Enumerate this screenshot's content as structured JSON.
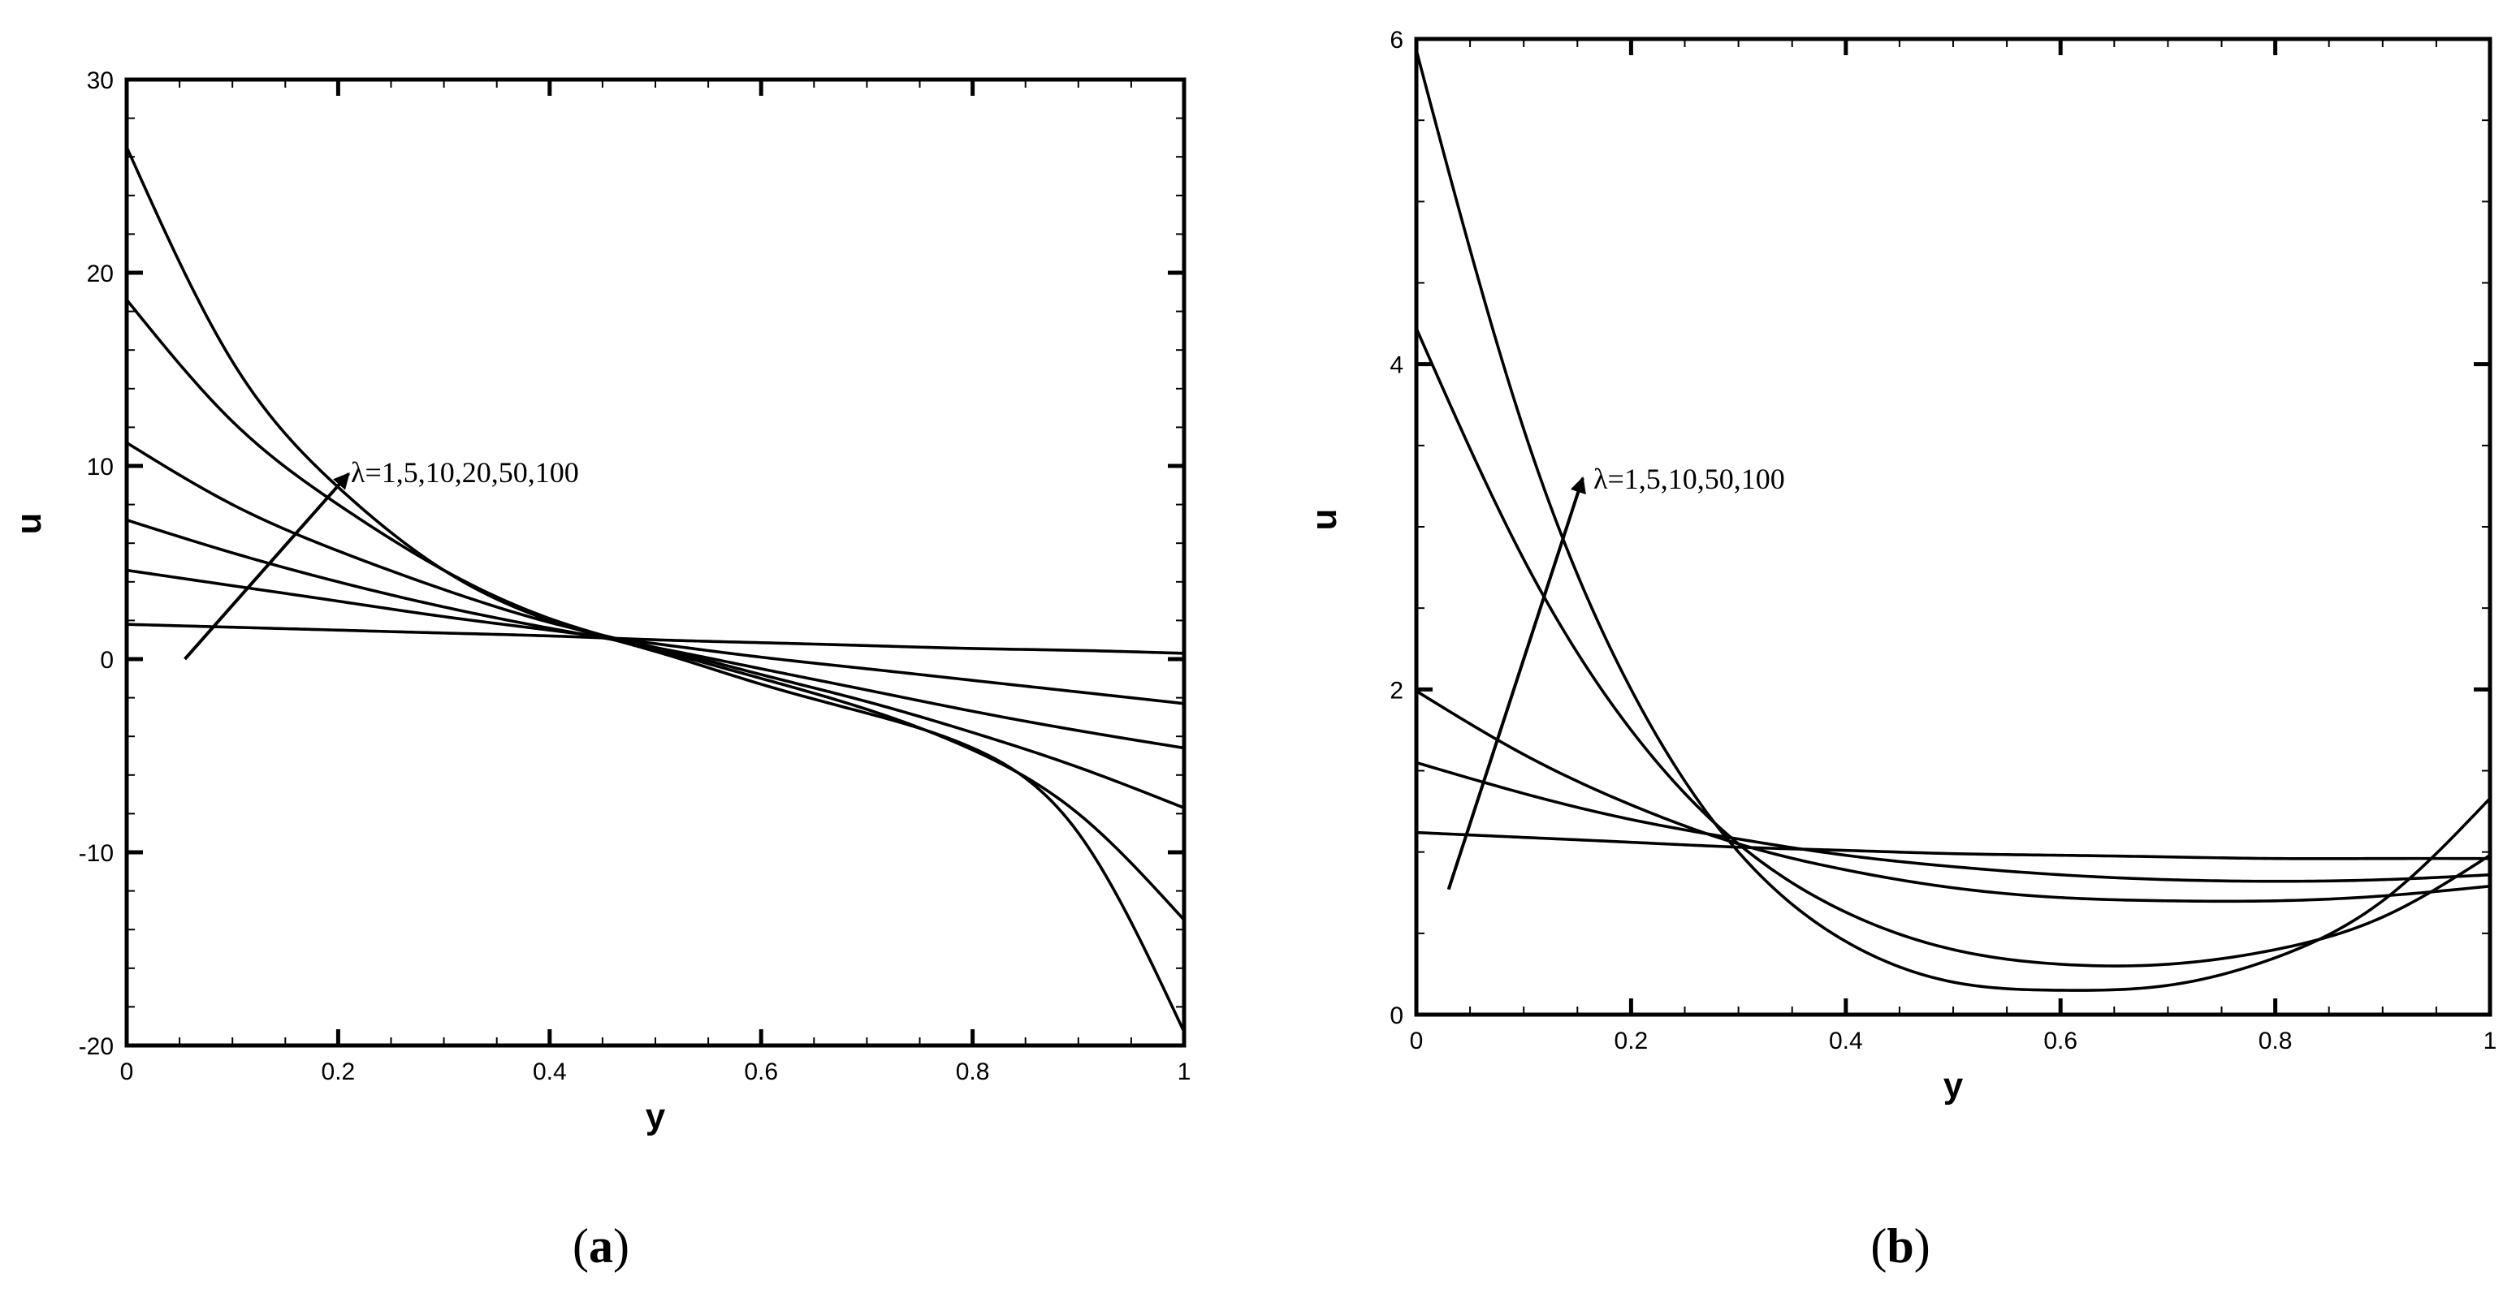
{
  "chart_data": [
    {
      "id": "a",
      "type": "line",
      "caption": {
        "open": "(",
        "letter": "a",
        "close": ")"
      },
      "xlabel": "y",
      "ylabel": "u",
      "xlim": [
        0,
        1
      ],
      "ylim": [
        -20,
        30
      ],
      "xticks": [
        0,
        0.2,
        0.4,
        0.6,
        0.8,
        1
      ],
      "xtick_labels": [
        "0",
        "0.2",
        "0.4",
        "0.6",
        "0.8",
        "1"
      ],
      "yticks": [
        -20,
        -10,
        0,
        10,
        20,
        30
      ],
      "ytick_labels": [
        "-20",
        "-10",
        "0",
        "10",
        "20",
        "30"
      ],
      "x_minor_step": 0.05,
      "y_minor_step": 2,
      "grid": false,
      "annotation": {
        "text": "λ=1,5,10,20,50,100",
        "arrow_from": [
          0.055,
          0
        ],
        "arrow_to": [
          0.21,
          9.6
        ]
      },
      "series": [
        {
          "name": "λ=1",
          "x": [
            0,
            0.1,
            0.2,
            0.3,
            0.4,
            0.5,
            0.6,
            0.7,
            0.8,
            0.9,
            1
          ],
          "y": [
            1.8,
            1.65,
            1.5,
            1.35,
            1.2,
            1.0,
            0.85,
            0.7,
            0.55,
            0.45,
            0.3
          ]
        },
        {
          "name": "λ=5",
          "x": [
            0,
            0.1,
            0.2,
            0.3,
            0.4,
            0.5,
            0.6,
            0.7,
            0.8,
            0.9,
            1
          ],
          "y": [
            4.6,
            3.8,
            3.0,
            2.2,
            1.5,
            0.8,
            0.1,
            -0.5,
            -1.1,
            -1.7,
            -2.3
          ]
        },
        {
          "name": "λ=10",
          "x": [
            0,
            0.1,
            0.2,
            0.3,
            0.4,
            0.5,
            0.6,
            0.7,
            0.8,
            0.9,
            1
          ],
          "y": [
            7.2,
            5.5,
            4.0,
            2.7,
            1.6,
            0.6,
            -0.5,
            -1.6,
            -2.7,
            -3.7,
            -4.6
          ]
        },
        {
          "name": "λ=20",
          "x": [
            0,
            0.1,
            0.2,
            0.3,
            0.4,
            0.5,
            0.6,
            0.7,
            0.8,
            0.9,
            1
          ],
          "y": [
            11.2,
            8.0,
            5.6,
            3.6,
            1.9,
            0.6,
            -0.8,
            -2.2,
            -3.8,
            -5.6,
            -7.7
          ]
        },
        {
          "name": "λ=50",
          "x": [
            0,
            0.1,
            0.2,
            0.3,
            0.4,
            0.5,
            0.6,
            0.7,
            0.8,
            0.9,
            1
          ],
          "y": [
            18.6,
            12.3,
            8.0,
            4.6,
            2.1,
            0.5,
            -1.0,
            -2.6,
            -4.7,
            -8.0,
            -13.5
          ]
        },
        {
          "name": "λ=100",
          "x": [
            0,
            0.1,
            0.2,
            0.3,
            0.4,
            0.5,
            0.6,
            0.7,
            0.8,
            0.9,
            1
          ],
          "y": [
            26.5,
            15.4,
            8.9,
            4.6,
            2.0,
            0.4,
            -1.3,
            -2.8,
            -4.6,
            -9.0,
            -19.3
          ]
        }
      ]
    },
    {
      "id": "b",
      "type": "line",
      "caption": {
        "open": "(",
        "letter": "b",
        "close": ")"
      },
      "xlabel": "y",
      "ylabel": "u",
      "xlim": [
        0,
        1
      ],
      "ylim": [
        0,
        6
      ],
      "xticks": [
        0,
        0.2,
        0.4,
        0.6,
        0.8,
        1
      ],
      "xtick_labels": [
        "0",
        "0.2",
        "0.4",
        "0.6",
        "0.8",
        "1"
      ],
      "yticks": [
        0,
        2,
        4,
        6
      ],
      "ytick_labels": [
        "0",
        "2",
        "4",
        "6"
      ],
      "x_minor_step": 0.05,
      "y_minor_step": 0.5,
      "grid": false,
      "annotation": {
        "text": "λ=1,5,10,50,100",
        "arrow_from": [
          0.03,
          0.77
        ],
        "arrow_to": [
          0.155,
          3.3
        ]
      },
      "series": [
        {
          "name": "λ=1",
          "x": [
            0,
            0.1,
            0.2,
            0.3,
            0.4,
            0.5,
            0.6,
            0.7,
            0.8,
            0.9,
            1
          ],
          "y": [
            1.12,
            1.09,
            1.06,
            1.03,
            1.01,
            0.99,
            0.98,
            0.97,
            0.96,
            0.96,
            0.96
          ]
        },
        {
          "name": "λ=5",
          "x": [
            0,
            0.1,
            0.2,
            0.3,
            0.4,
            0.5,
            0.6,
            0.7,
            0.8,
            0.9,
            1
          ],
          "y": [
            1.55,
            1.36,
            1.2,
            1.08,
            0.98,
            0.91,
            0.86,
            0.83,
            0.82,
            0.83,
            0.86
          ]
        },
        {
          "name": "λ=10",
          "x": [
            0,
            0.1,
            0.2,
            0.3,
            0.4,
            0.5,
            0.6,
            0.7,
            0.8,
            0.9,
            1
          ],
          "y": [
            1.99,
            1.6,
            1.29,
            1.05,
            0.89,
            0.78,
            0.72,
            0.7,
            0.7,
            0.73,
            0.79
          ]
        },
        {
          "name": "λ=50",
          "x": [
            0,
            0.1,
            0.2,
            0.3,
            0.4,
            0.5,
            0.6,
            0.7,
            0.8,
            0.9,
            1
          ],
          "y": [
            4.22,
            2.8,
            1.75,
            1.05,
            0.63,
            0.4,
            0.31,
            0.31,
            0.4,
            0.6,
            0.98
          ]
        },
        {
          "name": "λ=100",
          "x": [
            0,
            0.1,
            0.2,
            0.3,
            0.4,
            0.5,
            0.6,
            0.7,
            0.8,
            0.9,
            1
          ],
          "y": [
            5.93,
            3.6,
            2.0,
            1.0,
            0.45,
            0.2,
            0.15,
            0.18,
            0.35,
            0.7,
            1.33
          ]
        }
      ]
    }
  ]
}
